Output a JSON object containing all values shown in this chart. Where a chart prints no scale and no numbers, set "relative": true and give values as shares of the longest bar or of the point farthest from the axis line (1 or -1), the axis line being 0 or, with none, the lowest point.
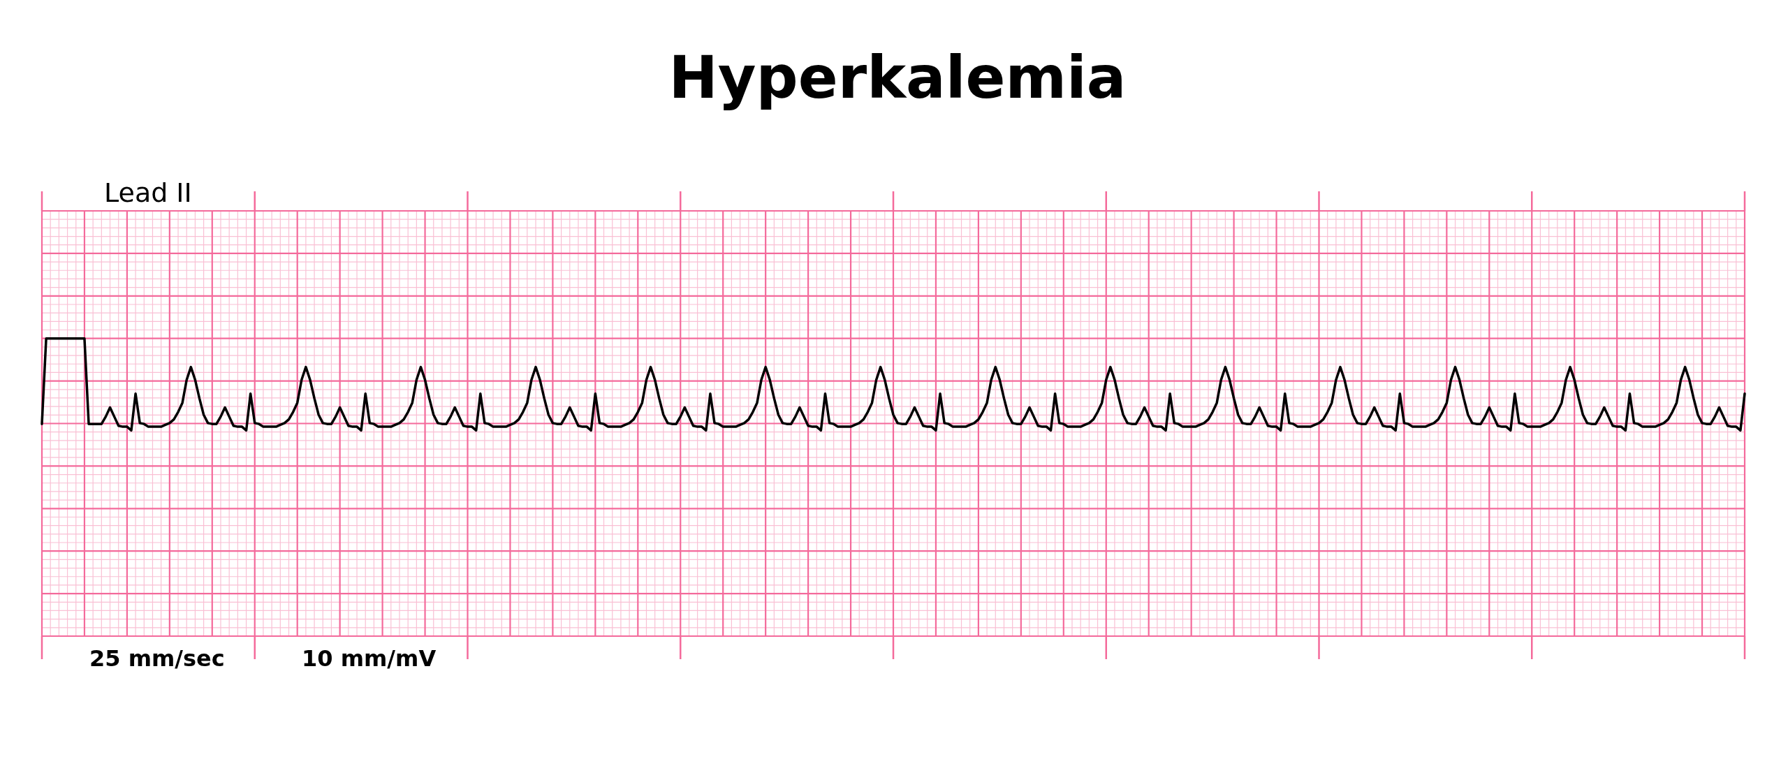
{
  "chart_data": {
    "type": "line",
    "title": "Hyperkalemia",
    "relative": true,
    "grid": true,
    "tick_labels": false,
    "line_style": "solid",
    "annotations": [
      "Lead II",
      "25 mm/sec",
      "10 mm/mV"
    ],
    "categories": [
      null,
      null,
      null,
      null,
      null,
      null,
      null,
      null,
      null,
      null,
      null,
      null,
      null,
      null,
      null,
      null,
      null,
      null,
      null,
      null,
      null,
      null,
      null,
      null,
      null,
      null,
      null,
      null,
      null,
      null,
      null,
      null,
      null,
      null,
      null,
      null,
      null,
      null,
      null,
      null,
      null,
      null,
      null,
      null,
      null,
      null,
      null,
      null,
      null,
      null,
      null,
      null,
      null,
      null,
      null,
      null,
      null,
      null,
      null,
      null,
      null,
      null,
      null,
      null,
      null,
      null,
      null,
      null,
      null,
      null,
      null,
      null,
      null,
      null,
      null,
      null,
      null,
      null,
      null,
      null,
      null,
      null,
      null,
      null,
      null,
      null,
      null,
      null,
      null,
      null,
      null,
      null,
      null,
      null,
      null,
      null,
      null,
      null,
      null,
      null,
      null,
      null,
      null,
      null,
      null,
      null,
      null,
      null,
      null,
      null,
      null,
      null,
      null,
      null,
      null,
      null,
      null,
      null,
      null,
      null,
      null,
      null,
      null,
      null,
      null,
      null,
      null,
      null,
      null,
      null,
      null,
      null,
      null,
      null,
      null,
      null,
      null,
      null,
      null,
      null,
      null,
      null,
      null,
      null,
      null,
      null,
      null,
      null,
      null,
      null,
      null,
      null,
      null,
      null,
      null,
      null,
      null,
      null,
      null,
      null,
      null,
      null,
      null,
      null,
      null,
      null,
      null,
      null,
      null,
      null,
      null,
      null,
      null,
      null,
      null,
      null,
      null,
      null,
      null,
      null,
      null,
      null,
      null,
      null,
      null,
      null,
      null,
      null,
      null,
      null,
      null,
      null,
      null,
      null,
      null,
      null,
      null,
      null,
      null,
      null,
      null,
      null,
      null,
      null,
      null,
      null,
      null,
      null,
      null,
      null,
      null,
      null,
      null,
      null,
      null,
      null,
      null,
      null,
      null,
      null,
      null,
      null,
      null,
      null,
      null,
      null,
      null,
      null,
      null,
      null,
      null,
      null,
      null,
      null,
      null,
      null,
      null,
      null,
      null,
      null,
      null,
      null,
      null,
      null,
      null,
      null,
      null,
      null,
      null,
      null,
      null,
      null,
      null,
      null,
      null,
      null,
      null,
      null,
      null,
      null,
      null,
      null,
      null,
      null,
      null,
      null,
      null,
      null,
      null,
      null,
      null,
      null,
      null,
      null,
      null,
      null,
      null,
      null,
      null,
      null,
      null,
      null,
      null,
      null,
      null,
      null,
      null,
      null,
      null,
      null,
      null,
      null,
      null,
      null,
      null,
      null,
      null,
      null,
      null,
      null,
      null,
      null,
      null,
      null,
      null,
      null,
      null,
      null,
      null,
      null,
      null,
      null,
      null,
      null,
      null,
      null,
      null,
      null,
      null,
      null,
      null,
      null,
      null,
      null,
      null,
      null,
      null,
      null,
      null,
      null,
      null,
      null,
      null,
      null,
      null,
      null,
      null,
      null,
      null,
      null,
      null,
      null,
      null,
      null,
      null,
      null,
      null,
      null,
      null,
      null,
      null,
      null,
      null,
      null,
      null,
      null,
      null,
      null,
      null,
      null,
      null,
      null,
      null,
      null,
      null,
      null,
      null,
      null,
      null,
      null,
      null,
      null,
      null,
      null,
      null,
      null,
      null,
      null,
      null,
      null,
      null,
      null,
      null,
      null,
      null,
      null,
      null,
      null,
      null,
      null,
      null,
      null,
      null,
      null,
      null,
      null,
      null,
      null,
      null,
      null,
      null
    ],
    "series": [
      {
        "color": "#000000",
        "values": [
          0.07,
          1,
          1,
          1,
          1,
          1,
          1,
          1,
          1,
          1,
          1,
          0.07,
          0.07,
          0.07,
          0.07,
          0.15,
          0.25,
          0.15,
          0.05,
          0.04,
          0.04,
          0,
          0.4,
          0.08,
          0.07,
          0.04,
          0.04,
          0.04,
          0.04,
          0.06,
          0.08,
          0.12,
          0.2,
          0.3,
          0.55,
          0.69,
          0.55,
          0.35,
          0.17,
          0.08,
          0.07,
          0.07,
          0.15,
          0.25,
          0.15,
          0.05,
          0.04,
          0.04,
          0,
          0.4,
          0.08,
          0.07,
          0.04,
          0.04,
          0.04,
          0.04,
          0.06,
          0.08,
          0.12,
          0.2,
          0.3,
          0.55,
          0.69,
          0.55,
          0.35,
          0.17,
          0.08,
          0.07,
          0.07,
          0.15,
          0.25,
          0.15,
          0.05,
          0.04,
          0.04,
          0,
          0.4,
          0.08,
          0.07,
          0.04,
          0.04,
          0.04,
          0.04,
          0.06,
          0.08,
          0.12,
          0.2,
          0.3,
          0.55,
          0.69,
          0.55,
          0.35,
          0.17,
          0.08,
          0.07,
          0.07,
          0.15,
          0.25,
          0.15,
          0.05,
          0.04,
          0.04,
          0,
          0.4,
          0.08,
          0.07,
          0.04,
          0.04,
          0.04,
          0.04,
          0.06,
          0.08,
          0.12,
          0.2,
          0.3,
          0.55,
          0.69,
          0.55,
          0.35,
          0.17,
          0.08,
          0.07,
          0.07,
          0.15,
          0.25,
          0.15,
          0.05,
          0.04,
          0.04,
          0,
          0.4,
          0.08,
          0.07,
          0.04,
          0.04,
          0.04,
          0.04,
          0.06,
          0.08,
          0.12,
          0.2,
          0.3,
          0.55,
          0.69,
          0.55,
          0.35,
          0.17,
          0.08,
          0.07,
          0.07,
          0.15,
          0.25,
          0.15,
          0.05,
          0.04,
          0.04,
          0,
          0.4,
          0.08,
          0.07,
          0.04,
          0.04,
          0.04,
          0.04,
          0.06,
          0.08,
          0.12,
          0.2,
          0.3,
          0.55,
          0.69,
          0.55,
          0.35,
          0.17,
          0.08,
          0.07,
          0.07,
          0.15,
          0.25,
          0.15,
          0.05,
          0.04,
          0.04,
          0,
          0.4,
          0.08,
          0.07,
          0.04,
          0.04,
          0.04,
          0.04,
          0.06,
          0.08,
          0.12,
          0.2,
          0.3,
          0.55,
          0.69,
          0.55,
          0.35,
          0.17,
          0.08,
          0.07,
          0.07,
          0.15,
          0.25,
          0.15,
          0.05,
          0.04,
          0.04,
          0,
          0.4,
          0.08,
          0.07,
          0.04,
          0.04,
          0.04,
          0.04,
          0.06,
          0.08,
          0.12,
          0.2,
          0.3,
          0.55,
          0.69,
          0.55,
          0.35,
          0.17,
          0.08,
          0.07,
          0.07,
          0.15,
          0.25,
          0.15,
          0.05,
          0.04,
          0.04,
          0,
          0.4,
          0.08,
          0.07,
          0.04,
          0.04,
          0.04,
          0.04,
          0.06,
          0.08,
          0.12,
          0.2,
          0.3,
          0.55,
          0.69,
          0.55,
          0.35,
          0.17,
          0.08,
          0.07,
          0.07,
          0.15,
          0.25,
          0.15,
          0.05,
          0.04,
          0.04,
          0,
          0.4,
          0.08,
          0.07,
          0.04,
          0.04,
          0.04,
          0.04,
          0.06,
          0.08,
          0.12,
          0.2,
          0.3,
          0.55,
          0.69,
          0.55,
          0.35,
          0.17,
          0.08,
          0.07,
          0.07,
          0.15,
          0.25,
          0.15,
          0.05,
          0.04,
          0.04,
          0,
          0.4,
          0.08,
          0.07,
          0.04,
          0.04,
          0.04,
          0.04,
          0.06,
          0.08,
          0.12,
          0.2,
          0.3,
          0.55,
          0.69,
          0.55,
          0.35,
          0.17,
          0.08,
          0.07,
          0.07,
          0.15,
          0.25,
          0.15,
          0.05,
          0.04,
          0.04,
          0,
          0.4,
          0.08,
          0.07,
          0.04,
          0.04,
          0.04,
          0.04,
          0.06,
          0.08,
          0.12,
          0.2,
          0.3,
          0.55,
          0.69,
          0.55,
          0.35,
          0.17,
          0.08,
          0.07,
          0.07,
          0.15,
          0.25,
          0.15,
          0.05,
          0.04,
          0.04,
          0,
          0.4,
          0.08,
          0.07,
          0.04,
          0.04,
          0.04,
          0.04,
          0.06,
          0.08,
          0.12,
          0.2,
          0.3,
          0.55,
          0.69,
          0.55,
          0.35,
          0.17,
          0.08,
          0.07,
          0.07,
          0.15,
          0.25,
          0.15,
          0.05,
          0.04,
          0.04,
          0,
          0.4,
          0.08,
          0.07,
          0.04,
          0.04,
          0.04,
          0.04,
          0.06,
          0.08,
          0.12,
          0.2,
          0.3,
          0.55,
          0.69,
          0.55,
          0.35,
          0.17,
          0.08,
          0.07,
          0.07,
          0.15,
          0.25,
          0.15,
          0.05,
          0.04,
          0.04,
          0,
          0.4
        ]
      }
    ]
  }
}
